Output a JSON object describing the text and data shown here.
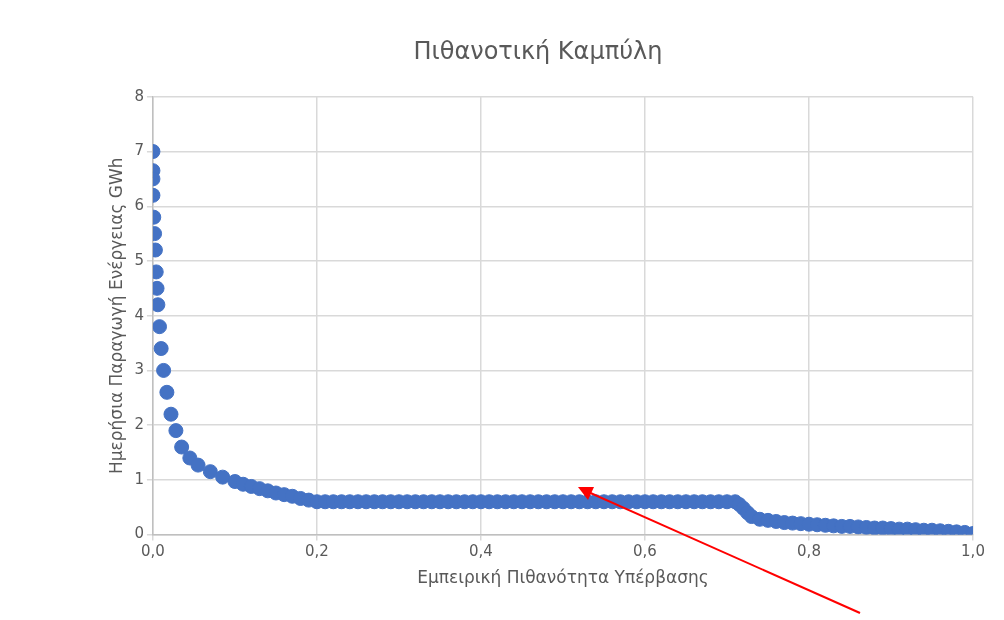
{
  "chart_data": {
    "type": "scatter",
    "title": "Πιθανοτική Καμπύλη",
    "xlabel": "Εμπειρική Πιθανότητα Υπέρβασης",
    "ylabel": "Ημερήσια Παραγωγή Ενέργειας GWh",
    "x": [
      0,
      0,
      0,
      0,
      0.001,
      0.002,
      0.003,
      0.004,
      0.005,
      0.006,
      0.008,
      0.01,
      0.013,
      0.017,
      0.022,
      0.028,
      0.035,
      0.045,
      0.055,
      0.07,
      0.085,
      0.1,
      0.11,
      0.12,
      0.13,
      0.14,
      0.15,
      0.16,
      0.17,
      0.18,
      0.19,
      0.2,
      0.21,
      0.22,
      0.23,
      0.24,
      0.25,
      0.26,
      0.27,
      0.28,
      0.29,
      0.3,
      0.31,
      0.32,
      0.33,
      0.34,
      0.35,
      0.36,
      0.37,
      0.38,
      0.39,
      0.4,
      0.41,
      0.42,
      0.43,
      0.44,
      0.45,
      0.46,
      0.47,
      0.48,
      0.49,
      0.5,
      0.51,
      0.52,
      0.53,
      0.54,
      0.55,
      0.56,
      0.57,
      0.58,
      0.59,
      0.6,
      0.61,
      0.62,
      0.63,
      0.64,
      0.65,
      0.66,
      0.67,
      0.68,
      0.69,
      0.7,
      0.71,
      0.715,
      0.72,
      0.725,
      0.73,
      0.74,
      0.75,
      0.76,
      0.77,
      0.78,
      0.79,
      0.8,
      0.81,
      0.82,
      0.83,
      0.84,
      0.85,
      0.86,
      0.87,
      0.88,
      0.89,
      0.9,
      0.91,
      0.92,
      0.93,
      0.94,
      0.95,
      0.96,
      0.97,
      0.98,
      0.99,
      1.0
    ],
    "series": [
      {
        "color": "#4472c4",
        "values": [
          7.0,
          6.65,
          6.5,
          6.2,
          5.8,
          5.5,
          5.2,
          4.8,
          4.5,
          4.2,
          3.8,
          3.4,
          3.0,
          2.6,
          2.2,
          1.9,
          1.6,
          1.4,
          1.27,
          1.15,
          1.05,
          0.97,
          0.92,
          0.88,
          0.84,
          0.8,
          0.76,
          0.73,
          0.7,
          0.66,
          0.63,
          0.6,
          0.6,
          0.6,
          0.6,
          0.6,
          0.6,
          0.6,
          0.6,
          0.6,
          0.6,
          0.6,
          0.6,
          0.6,
          0.6,
          0.6,
          0.6,
          0.6,
          0.6,
          0.6,
          0.6,
          0.6,
          0.6,
          0.6,
          0.6,
          0.6,
          0.6,
          0.6,
          0.6,
          0.6,
          0.6,
          0.6,
          0.6,
          0.6,
          0.6,
          0.6,
          0.6,
          0.6,
          0.6,
          0.6,
          0.6,
          0.6,
          0.6,
          0.6,
          0.6,
          0.6,
          0.6,
          0.6,
          0.6,
          0.6,
          0.6,
          0.6,
          0.6,
          0.55,
          0.48,
          0.4,
          0.33,
          0.28,
          0.26,
          0.24,
          0.22,
          0.21,
          0.2,
          0.19,
          0.18,
          0.17,
          0.16,
          0.15,
          0.15,
          0.14,
          0.13,
          0.12,
          0.12,
          0.11,
          0.1,
          0.1,
          0.09,
          0.08,
          0.08,
          0.07,
          0.06,
          0.05,
          0.04,
          0.02
        ]
      }
    ],
    "xlim": [
      0,
      1
    ],
    "xticks": [
      {
        "value": 0,
        "label": "0,0"
      },
      {
        "value": 0.2,
        "label": "0,2"
      },
      {
        "value": 0.4,
        "label": "0,4"
      },
      {
        "value": 0.6,
        "label": "0,6"
      },
      {
        "value": 0.8,
        "label": "0,8"
      },
      {
        "value": 1,
        "label": "1,0"
      }
    ],
    "ylim": [
      0,
      8
    ],
    "yticks": [
      0,
      1,
      2,
      3,
      4,
      5,
      6,
      7,
      8
    ],
    "grid": true,
    "legend": false,
    "marker": "circle"
  }
}
